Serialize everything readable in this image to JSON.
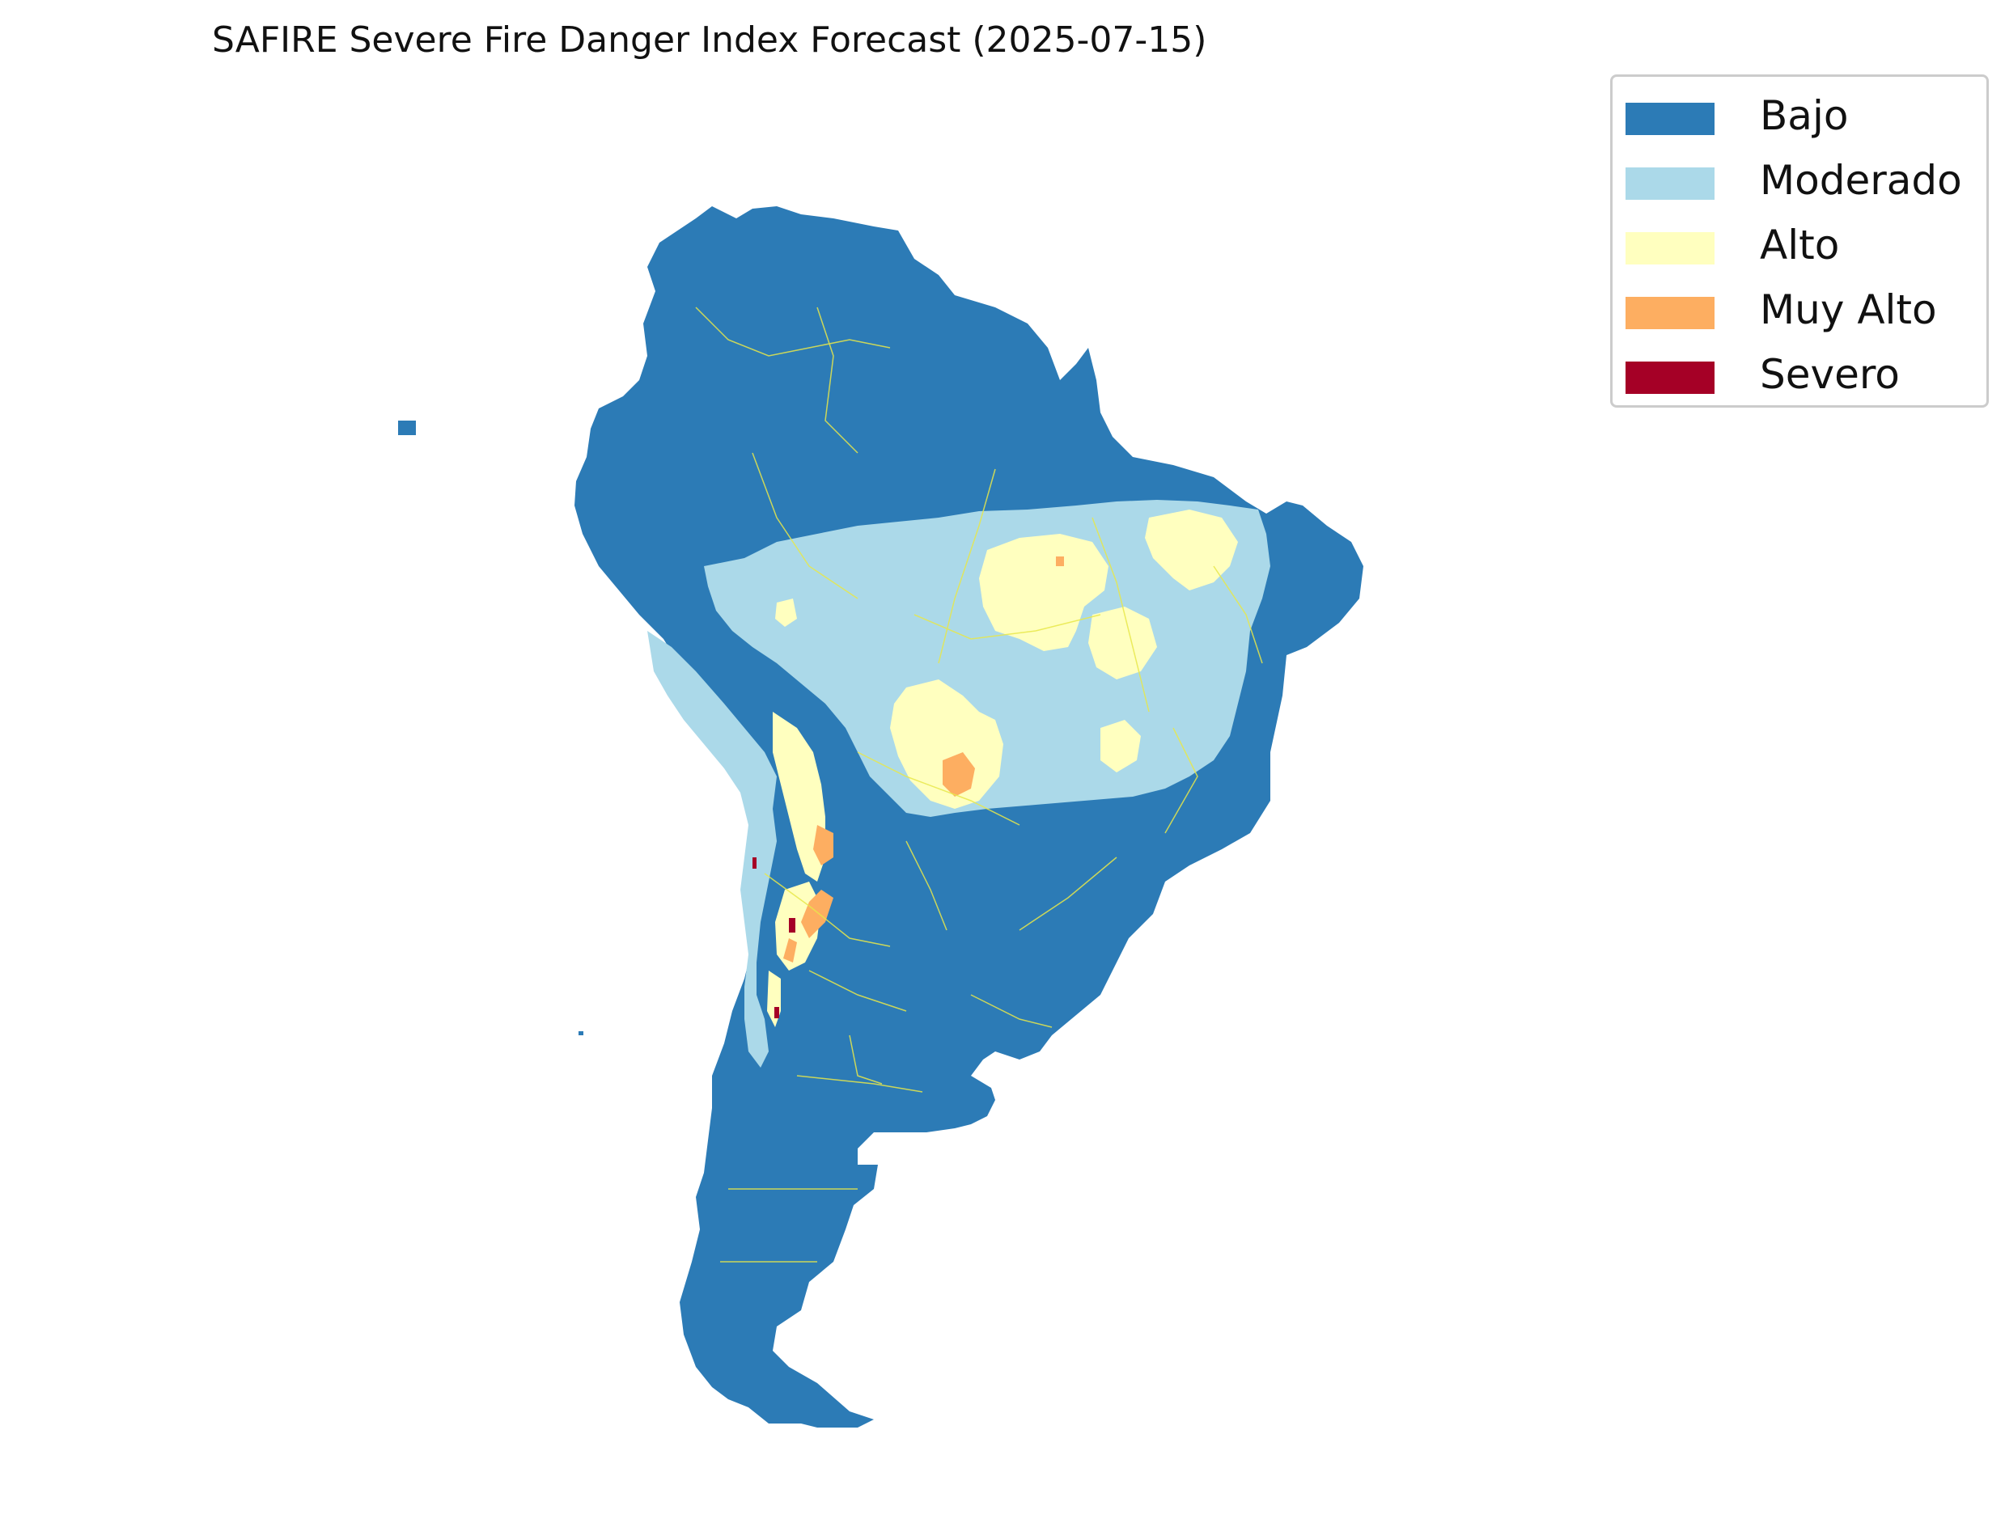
{
  "title": "SAFIRE Severe Fire Danger Index Forecast (2025-07-15)",
  "legend": {
    "items": [
      {
        "label": "Bajo",
        "color": "#2c7bb6"
      },
      {
        "label": "Moderado",
        "color": "#abd9e9"
      },
      {
        "label": "Alto",
        "color": "#ffffbf"
      },
      {
        "label": "Muy Alto",
        "color": "#fdae61"
      },
      {
        "label": "Severo",
        "color": "#a50026"
      }
    ]
  },
  "map": {
    "region": "South America",
    "boundary_color": "#e8e84a"
  }
}
